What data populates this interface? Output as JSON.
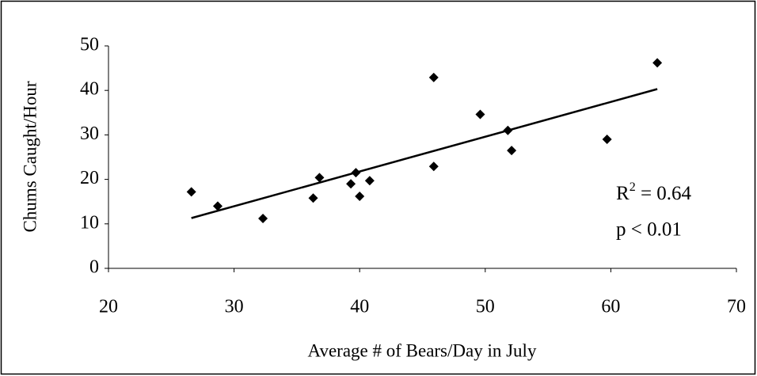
{
  "chart_data": {
    "type": "scatter",
    "x_label": "Average # of Bears/Day in July",
    "y_label": "Chums Caught/Hour",
    "xlim": [
      20,
      70
    ],
    "xticks": [
      20,
      30,
      40,
      50,
      60,
      70
    ],
    "ylim": [
      0,
      50
    ],
    "yticks": [
      0,
      10,
      20,
      30,
      40,
      50
    ],
    "color": "#000000",
    "x": [
      26.6,
      28.7,
      32.3,
      36.3,
      36.8,
      39.3,
      39.7,
      40.0,
      40.8,
      45.9,
      45.9,
      49.6,
      51.8,
      52.1,
      59.7,
      63.7
    ],
    "values": [
      17.2,
      14.0,
      11.2,
      15.8,
      20.4,
      19.0,
      21.5,
      16.2,
      19.7,
      42.9,
      22.9,
      34.6,
      31.0,
      26.5,
      29.0,
      46.2
    ],
    "trendline": {
      "x": [
        26.6,
        63.7
      ],
      "values": [
        11.3,
        40.3
      ]
    },
    "annotation": {
      "base": "R",
      "sup": "2",
      "rest": " = 0.64",
      "p": "p < 0.01"
    }
  }
}
